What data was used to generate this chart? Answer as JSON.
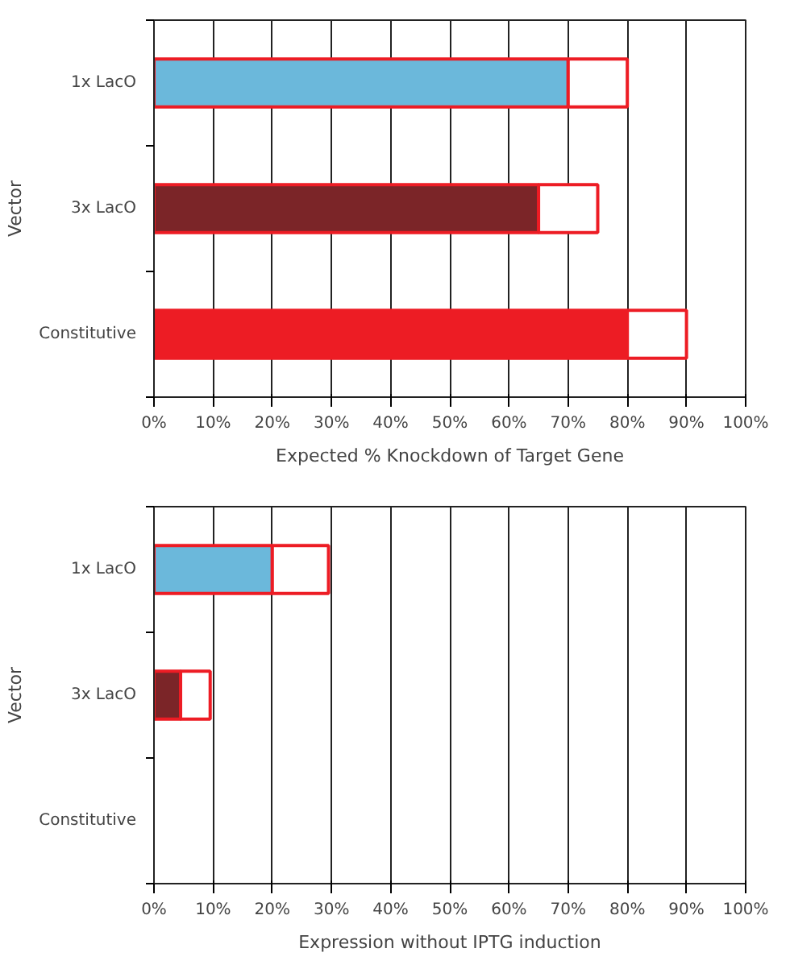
{
  "chart_data": [
    {
      "type": "bar",
      "orientation": "horizontal",
      "stacked": true,
      "xlabel": "Expected % Knockdown of Target Gene",
      "ylabel": "Vector",
      "categories": [
        "1x LacO",
        "3x LacO",
        "Constitutive"
      ],
      "series": [
        {
          "colors": [
            "#6bb8db",
            "#7b2528",
            "#ed1c24"
          ],
          "values": [
            70,
            65,
            80
          ]
        },
        {
          "color": "#ffffff",
          "values": [
            10,
            10,
            10
          ]
        }
      ],
      "xlim": [
        0,
        100
      ],
      "xticks": [
        {
          "value": 0,
          "label": "0%"
        },
        {
          "value": 10,
          "label": "10%"
        },
        {
          "value": 20,
          "label": "20%"
        },
        {
          "value": 30,
          "label": "30%"
        },
        {
          "value": 40,
          "label": "40%"
        },
        {
          "value": 50,
          "label": "50%"
        },
        {
          "value": 60,
          "label": "60%"
        },
        {
          "value": 70,
          "label": "70%"
        },
        {
          "value": 80,
          "label": "80%"
        },
        {
          "value": 90,
          "label": "90%"
        },
        {
          "value": 100,
          "label": "100%"
        }
      ],
      "grid": "x"
    },
    {
      "type": "bar",
      "orientation": "horizontal",
      "stacked": true,
      "xlabel": "Expression without IPTG induction",
      "ylabel": "Vector",
      "categories": [
        "1x LacO",
        "3x LacO",
        "Constitutive"
      ],
      "series": [
        {
          "colors": [
            "#6bb8db",
            "#7b2528",
            "#ed1c24"
          ],
          "values": [
            20,
            4.5,
            null
          ]
        },
        {
          "color": "#ffffff",
          "values": [
            9.5,
            5,
            null
          ]
        }
      ],
      "xlim": [
        0,
        100
      ],
      "xticks": [
        {
          "value": 0,
          "label": "0%"
        },
        {
          "value": 10,
          "label": "10%"
        },
        {
          "value": 20,
          "label": "20%"
        },
        {
          "value": 30,
          "label": "30%"
        },
        {
          "value": 40,
          "label": "40%"
        },
        {
          "value": 50,
          "label": "50%"
        },
        {
          "value": 60,
          "label": "60%"
        },
        {
          "value": 70,
          "label": "70%"
        },
        {
          "value": 80,
          "label": "80%"
        },
        {
          "value": 90,
          "label": "90%"
        },
        {
          "value": 100,
          "label": "100%"
        }
      ],
      "grid": "x"
    }
  ]
}
